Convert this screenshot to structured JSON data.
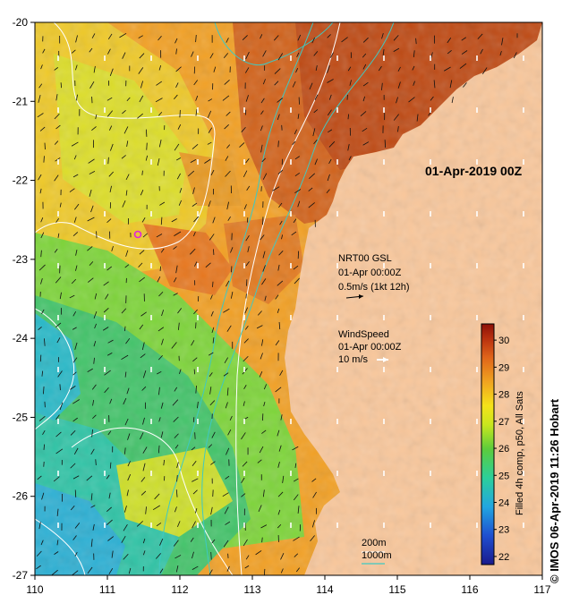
{
  "map": {
    "date_label": "01-Apr-2019 00Z",
    "credit": "© IMOS 06-Apr-2019 11:26 Hobart",
    "x_axis": {
      "ticks": [
        "110",
        "111",
        "112",
        "113",
        "114",
        "115",
        "116",
        "117"
      ],
      "range": [
        110,
        117
      ]
    },
    "y_axis": {
      "ticks": [
        "-20",
        "-21",
        "-22",
        "-23",
        "-24",
        "-25",
        "-26",
        "-27"
      ],
      "range": [
        -27,
        -20
      ]
    },
    "current_legend": {
      "title": "NRT00 GSL",
      "time": "01-Apr 00:00Z",
      "scale": "0.5m/s (1kt 12h)"
    },
    "wind_legend": {
      "title": "WindSpeed",
      "time": "01-Apr 00:00Z",
      "scale": "10 m/s"
    },
    "depth_legend": {
      "contour_200": "200m",
      "contour_1000": "1000m"
    },
    "colorbar": {
      "title": "Filled 4h comp, p50, All Sats",
      "ticks": [
        "22",
        "23",
        "24",
        "25",
        "26",
        "27",
        "28",
        "29",
        "30"
      ],
      "range": [
        21.7,
        30.6
      ]
    },
    "colors": {
      "land": "#f9c79b",
      "contour_200": "#ffffff",
      "contour_1000": "#3fc9c2",
      "marker": "#e020e0"
    }
  }
}
